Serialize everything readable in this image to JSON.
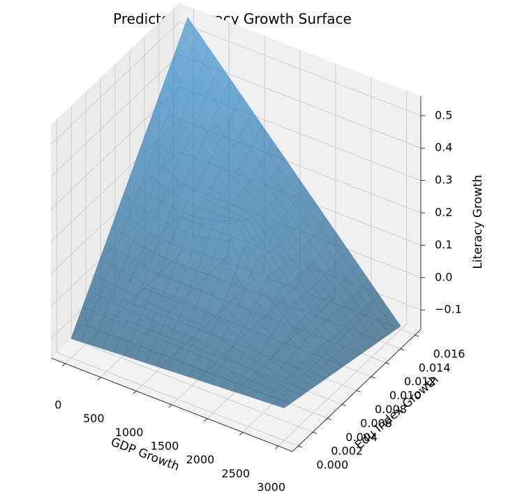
{
  "chart_data": {
    "type": "surface3d",
    "title": "Predicted Literacy Growth Surface",
    "xlabel": "GDP Growth",
    "ylabel": "Edu Index Growth",
    "zlabel": "Literacy Growth",
    "x_ticks": [
      "0",
      "500",
      "1000",
      "1500",
      "2000",
      "2500",
      "3000"
    ],
    "y_ticks": [
      "0.000",
      "0.002",
      "0.004",
      "0.006",
      "0.008",
      "0.010",
      "0.012",
      "0.014",
      "0.016"
    ],
    "z_ticks": [
      "−0.1",
      "0.0",
      "0.1",
      "0.2",
      "0.3",
      "0.4",
      "0.5"
    ],
    "xlim": [
      -200,
      3200
    ],
    "ylim": [
      -0.0008,
      0.0168
    ],
    "zlim": [
      -0.16,
      0.56
    ],
    "grid": true,
    "surface_color": "#1f77b4",
    "surface_alpha": 0.7,
    "surface_corners": [
      {
        "x": 0,
        "y": 0,
        "z": -0.1
      },
      {
        "x": 3000,
        "y": 0,
        "z": -0.06
      },
      {
        "x": 3000,
        "y": 0.016,
        "z": -0.15
      },
      {
        "x": 0,
        "y": 0.016,
        "z": 0.55
      }
    ],
    "surface_center": {
      "x": 1500,
      "y": 0.008,
      "z": 0.38
    }
  }
}
